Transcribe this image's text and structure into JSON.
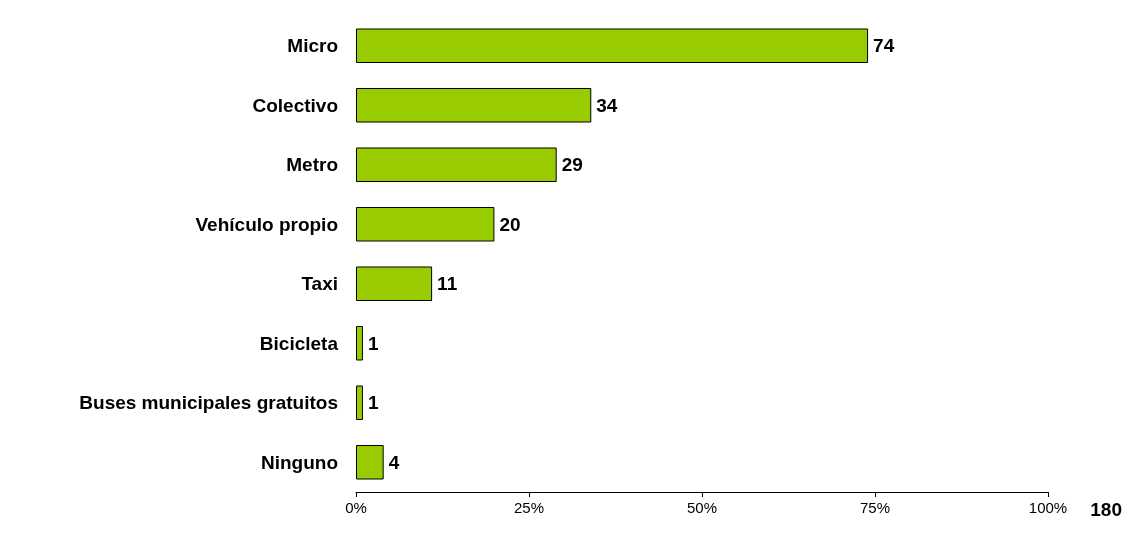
{
  "chart_data": {
    "type": "bar",
    "orientation": "horizontal",
    "categories": [
      "Micro",
      "Colectivo",
      "Metro",
      "Vehículo propio",
      "Taxi",
      "Bicicleta",
      "Buses municipales gratuitos",
      "Ninguno"
    ],
    "values": [
      74,
      34,
      29,
      20,
      11,
      1,
      1,
      4
    ],
    "color": "#99cc00",
    "data_labels": true,
    "xlim": [
      0,
      100
    ],
    "xticks": [
      {
        "value": 0,
        "label": "0%"
      },
      {
        "value": 25,
        "label": "25%"
      },
      {
        "value": 50,
        "label": "50%"
      },
      {
        "value": 75,
        "label": "75%"
      },
      {
        "value": 100,
        "label": "100%"
      }
    ],
    "grid": false,
    "annotations": [
      "180"
    ]
  }
}
